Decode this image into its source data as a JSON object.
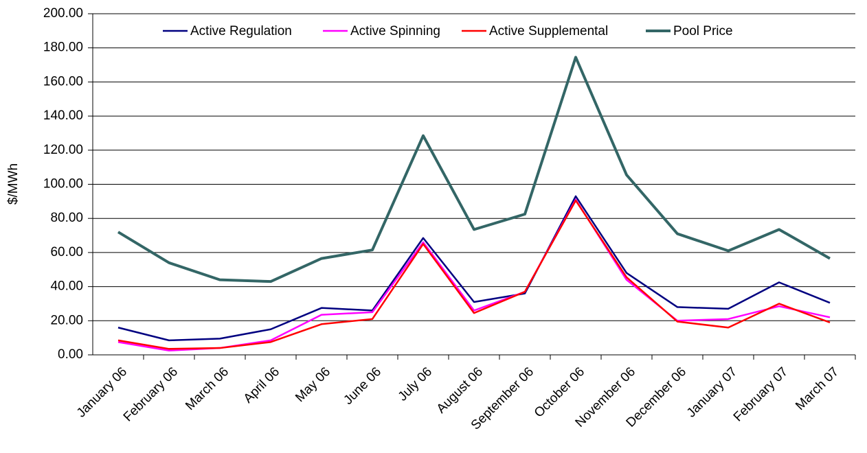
{
  "chart_data": {
    "type": "line",
    "y_label": "$/MWh",
    "categories": [
      "January 06",
      "February 06",
      "March 06",
      "April 06",
      "May 06",
      "June 06",
      "July 06",
      "August 06",
      "September 06",
      "October 06",
      "November 06",
      "December 06",
      "January 07",
      "February 07",
      "March 07"
    ],
    "series": [
      {
        "name": "Active Regulation",
        "color": "#000080",
        "values": [
          16,
          8.5,
          9.5,
          15,
          27.5,
          26,
          68.5,
          31,
          36,
          93,
          48,
          28,
          27,
          42.5,
          30.5
        ]
      },
      {
        "name": "Active Spinning",
        "color": "#ff00ff",
        "values": [
          7.5,
          2.5,
          4,
          8.5,
          23.5,
          25,
          66,
          26,
          37,
          91,
          44,
          20,
          21,
          28.5,
          22
        ]
      },
      {
        "name": "Active Supplemental",
        "color": "#ff0000",
        "values": [
          8.5,
          3.5,
          4,
          7.5,
          18,
          21,
          65,
          24.5,
          37,
          90.5,
          45.5,
          19.5,
          16,
          30,
          19
        ]
      },
      {
        "name": "Pool Price",
        "color": "#336666",
        "values": [
          72,
          54,
          44,
          43,
          56.5,
          61.5,
          128.5,
          73.5,
          82.5,
          174.5,
          105.5,
          71,
          61,
          73.5,
          56.5
        ]
      }
    ],
    "ylim": [
      0,
      200
    ],
    "yticks": [
      {
        "value": 0,
        "label": "0.00"
      },
      {
        "value": 20,
        "label": "20.00"
      },
      {
        "value": 40,
        "label": "40.00"
      },
      {
        "value": 60,
        "label": "60.00"
      },
      {
        "value": 80,
        "label": "80.00"
      },
      {
        "value": 100,
        "label": "100.00"
      },
      {
        "value": 120,
        "label": "120.00"
      },
      {
        "value": 140,
        "label": "140.00"
      },
      {
        "value": 160,
        "label": "160.00"
      },
      {
        "value": 180,
        "label": "180.00"
      },
      {
        "value": 200,
        "label": "200.00"
      }
    ],
    "grid": true
  }
}
